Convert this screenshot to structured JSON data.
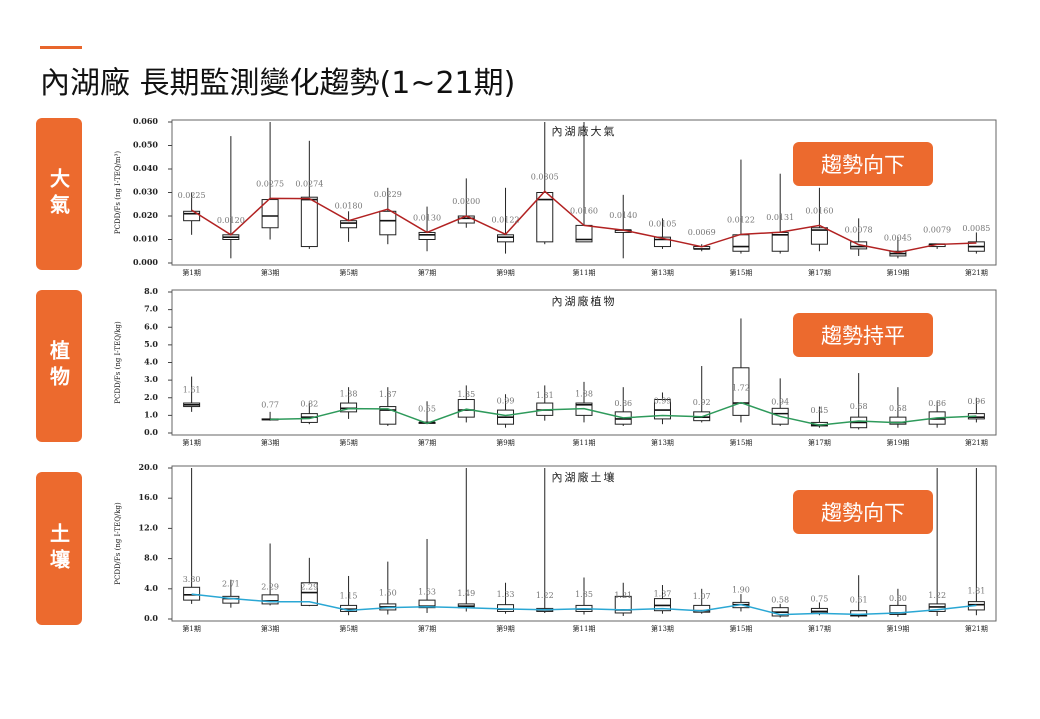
{
  "title": "內湖廠 長期監測變化趨勢(1~21期)",
  "panels": [
    {
      "label": "大氣",
      "trend": "趨勢向下"
    },
    {
      "label": "植物",
      "trend": "趨勢持平"
    },
    {
      "label": "土壤",
      "trend": "趨勢向下"
    }
  ],
  "chart_data": [
    {
      "type": "box",
      "title": "內湖廠大氣",
      "y_label": "PCDD/Fs (ng I-TEQ/m³)",
      "color": "#b22222",
      "categories": [
        "第1期",
        null,
        "第3期",
        null,
        "第5期",
        null,
        "第7期",
        null,
        "第9期",
        null,
        "第11期",
        null,
        "第13期",
        null,
        "第15期",
        null,
        "第17期",
        null,
        "第19期",
        null,
        "第21期"
      ],
      "values": [
        0.0225,
        0.012,
        0.0275,
        0.0274,
        0.018,
        0.0229,
        0.013,
        0.02,
        0.0122,
        0.0305,
        0.016,
        0.014,
        0.0105,
        0.0069,
        0.0122,
        0.0131,
        0.016,
        0.0078,
        0.0045,
        0.0079,
        0.0085
      ],
      "value_labels": [
        "0.0225",
        "0.0120",
        "0.0275",
        "0.0274",
        "0.0180",
        "0.0229",
        "0.0130",
        "0.0200",
        "0.0122",
        "0.0305",
        "0.0160",
        "0.0140",
        "0.0105",
        "0.0069",
        "0.0122",
        "0.0131",
        "0.0160",
        "0.0078",
        "0.0045",
        "0.0079",
        "0.0085"
      ],
      "boxes": [
        [
          0.012,
          0.018,
          0.021,
          0.022,
          0.03
        ],
        [
          0.002,
          0.01,
          0.011,
          0.012,
          0.054
        ],
        [
          0.01,
          0.015,
          0.02,
          0.027,
          0.06
        ],
        [
          0.006,
          0.007,
          0.027,
          0.028,
          0.052
        ],
        [
          0.009,
          0.015,
          0.017,
          0.018,
          0.022
        ],
        [
          0.008,
          0.012,
          0.018,
          0.022,
          0.032
        ],
        [
          0.005,
          0.01,
          0.012,
          0.013,
          0.024
        ],
        [
          0.015,
          0.017,
          0.019,
          0.02,
          0.036
        ],
        [
          0.004,
          0.009,
          0.011,
          0.012,
          0.032
        ],
        [
          0.008,
          0.009,
          0.027,
          0.03,
          0.06
        ],
        [
          0.009,
          0.009,
          0.01,
          0.016,
          0.06
        ],
        [
          0.002,
          0.013,
          0.014,
          0.014,
          0.029
        ],
        [
          0.006,
          0.007,
          0.01,
          0.011,
          0.019
        ],
        [
          0.005,
          0.006,
          0.006,
          0.007,
          0.008
        ],
        [
          0.004,
          0.005,
          0.007,
          0.012,
          0.044
        ],
        [
          0.004,
          0.005,
          0.012,
          0.013,
          0.038
        ],
        [
          0.005,
          0.008,
          0.014,
          0.015,
          0.032
        ],
        [
          0.003,
          0.006,
          0.007,
          0.009,
          0.019
        ],
        [
          0.002,
          0.003,
          0.004,
          0.005,
          0.011
        ],
        [
          0.006,
          0.007,
          0.008,
          0.008,
          0.008
        ],
        [
          0.004,
          0.005,
          0.007,
          0.009,
          0.013
        ]
      ],
      "ylim": [
        0,
        0.06
      ],
      "yticks": [
        {
          "value": 0,
          "label": "0.000"
        },
        {
          "value": 0.01,
          "label": "0.010"
        },
        {
          "value": 0.02,
          "label": "0.020"
        },
        {
          "value": 0.03,
          "label": "0.030"
        },
        {
          "value": 0.04,
          "label": "0.040"
        },
        {
          "value": 0.05,
          "label": "0.050"
        },
        {
          "value": 0.06,
          "label": "0.060"
        }
      ]
    },
    {
      "type": "box",
      "title": "內湖廠植物",
      "y_label": "PCDD/Fs (ng I-TEQ/kg)",
      "color": "#2e9a5b",
      "categories": [
        "第1期",
        null,
        "第3期",
        null,
        "第5期",
        null,
        "第7期",
        null,
        "第9期",
        null,
        "第11期",
        null,
        "第13期",
        null,
        "第15期",
        null,
        "第17期",
        null,
        "第19期",
        null,
        "第21期"
      ],
      "values": [
        1.61,
        null,
        0.77,
        0.82,
        1.38,
        1.37,
        0.55,
        1.35,
        0.99,
        1.31,
        1.38,
        0.86,
        0.99,
        0.92,
        1.72,
        0.94,
        0.45,
        0.68,
        0.58,
        0.86,
        0.96
      ],
      "value_labels": [
        "1.61",
        null,
        "0.77",
        "0.82",
        "1.38",
        "1.37",
        "0.55",
        "1.35",
        "0.99",
        "1.31",
        "1.38",
        "0.86",
        "0.99",
        "0.92",
        "1.72",
        "0.94",
        "0.45",
        "0.68",
        "0.58",
        "0.86",
        "0.96"
      ],
      "boxes": [
        [
          1.2,
          1.5,
          1.6,
          1.7,
          3.2
        ],
        null,
        [
          0.7,
          0.75,
          0.77,
          0.8,
          1.2
        ],
        [
          0.5,
          0.6,
          0.9,
          1.1,
          1.7
        ],
        [
          0.8,
          1.2,
          1.4,
          1.7,
          2.6
        ],
        [
          0.4,
          0.5,
          1.3,
          1.5,
          2.6
        ],
        [
          0.5,
          0.55,
          0.6,
          0.6,
          1.8
        ],
        [
          0.6,
          0.9,
          1.3,
          1.9,
          2.7
        ],
        [
          0.3,
          0.5,
          0.9,
          1.3,
          2.2
        ],
        [
          0.7,
          1,
          1.3,
          1.7,
          2.7
        ],
        [
          0.6,
          1,
          1.6,
          1.7,
          2.9
        ],
        [
          0.4,
          0.5,
          0.8,
          1.2,
          2.6
        ],
        [
          0.5,
          0.8,
          1.3,
          1.9,
          2.3
        ],
        [
          0.6,
          0.7,
          0.9,
          1.2,
          3.8
        ],
        [
          0.6,
          1,
          1.7,
          3.7,
          6.5
        ],
        [
          0.4,
          0.5,
          1.1,
          1.4,
          3.1
        ],
        [
          0.3,
          0.4,
          0.45,
          0.6,
          1.5
        ],
        [
          0.2,
          0.3,
          0.6,
          0.9,
          3.4
        ],
        [
          0.3,
          0.5,
          0.6,
          0.9,
          2.6
        ],
        [
          0.3,
          0.5,
          0.8,
          1.2,
          1.8
        ],
        [
          0.6,
          0.8,
          0.9,
          1.1,
          2
        ]
      ],
      "ylim": [
        0,
        8
      ],
      "yticks": [
        {
          "value": 0,
          "label": "0.0"
        },
        {
          "value": 1,
          "label": "1.0"
        },
        {
          "value": 2,
          "label": "2.0"
        },
        {
          "value": 3,
          "label": "3.0"
        },
        {
          "value": 4,
          "label": "4.0"
        },
        {
          "value": 5,
          "label": "5.0"
        },
        {
          "value": 6,
          "label": "6.0"
        },
        {
          "value": 7,
          "label": "7.0"
        },
        {
          "value": 8,
          "label": "8.0"
        }
      ]
    },
    {
      "type": "box",
      "title": "內湖廠土壤",
      "y_label": "PCDD/Fs (ng I-TEQ/kg)",
      "color": "#2aa7d4",
      "categories": [
        "第1期",
        null,
        "第3期",
        null,
        "第5期",
        null,
        "第7期",
        null,
        "第9期",
        null,
        "第11期",
        null,
        "第13期",
        null,
        "第15期",
        null,
        "第17期",
        null,
        "第19期",
        null,
        "第21期"
      ],
      "values": [
        3.3,
        2.71,
        2.29,
        2.29,
        1.15,
        1.5,
        1.63,
        1.49,
        1.33,
        1.22,
        1.35,
        1.21,
        1.37,
        1.07,
        1.9,
        0.58,
        0.75,
        0.61,
        0.8,
        1.22,
        1.81
      ],
      "value_labels": [
        "3.30",
        "2.71",
        "2.29",
        "2.29",
        "1.15",
        "1.50",
        "1.63",
        "1.49",
        "1.33",
        "1.22",
        "1.35",
        "1.21",
        "1.37",
        "1.07",
        "1.90",
        "0.58",
        "0.75",
        "0.61",
        "0.80",
        "1.22",
        "1.81"
      ],
      "boxes": [
        [
          2,
          2.5,
          3.2,
          4.2,
          20
        ],
        [
          1.5,
          2.1,
          2.7,
          3,
          5.2
        ],
        [
          1.8,
          2,
          2.4,
          3.2,
          10
        ],
        [
          1.7,
          1.8,
          3.5,
          4.8,
          8.1
        ],
        [
          0.5,
          1,
          1.3,
          1.8,
          5.7
        ],
        [
          0.6,
          1.2,
          1.6,
          2,
          7.6
        ],
        [
          0.8,
          1.5,
          1.7,
          2.5,
          10.6
        ],
        [
          1,
          1.5,
          1.7,
          2,
          20
        ],
        [
          0.7,
          1,
          1.3,
          1.9,
          4.8
        ],
        [
          0.8,
          1,
          1.2,
          1.4,
          20
        ],
        [
          0.6,
          1,
          1.3,
          1.8,
          5.5
        ],
        [
          0.4,
          0.8,
          1.2,
          3,
          4.8
        ],
        [
          0.7,
          1.1,
          1.8,
          2.7,
          4.5
        ],
        [
          0.7,
          0.9,
          1.1,
          1.8,
          4
        ],
        [
          1,
          1.5,
          1.9,
          2.2,
          3.3
        ],
        [
          0.2,
          0.4,
          0.9,
          1.5,
          2
        ],
        [
          0.5,
          0.8,
          1,
          1.4,
          2.2
        ],
        [
          0.2,
          0.4,
          0.5,
          1.1,
          5.8
        ],
        [
          0.3,
          0.6,
          0.8,
          1.8,
          4
        ],
        [
          0.4,
          1,
          1.6,
          2,
          20
        ],
        [
          0.5,
          1.2,
          1.9,
          2.3,
          20
        ]
      ],
      "ylim": [
        0,
        20
      ],
      "yticks": [
        {
          "value": 0,
          "label": "0.0"
        },
        {
          "value": 4,
          "label": "4.0"
        },
        {
          "value": 8,
          "label": "8.0"
        },
        {
          "value": 12,
          "label": "12.0"
        },
        {
          "value": 16,
          "label": "16.0"
        },
        {
          "value": 20,
          "label": "20.0"
        }
      ]
    }
  ]
}
